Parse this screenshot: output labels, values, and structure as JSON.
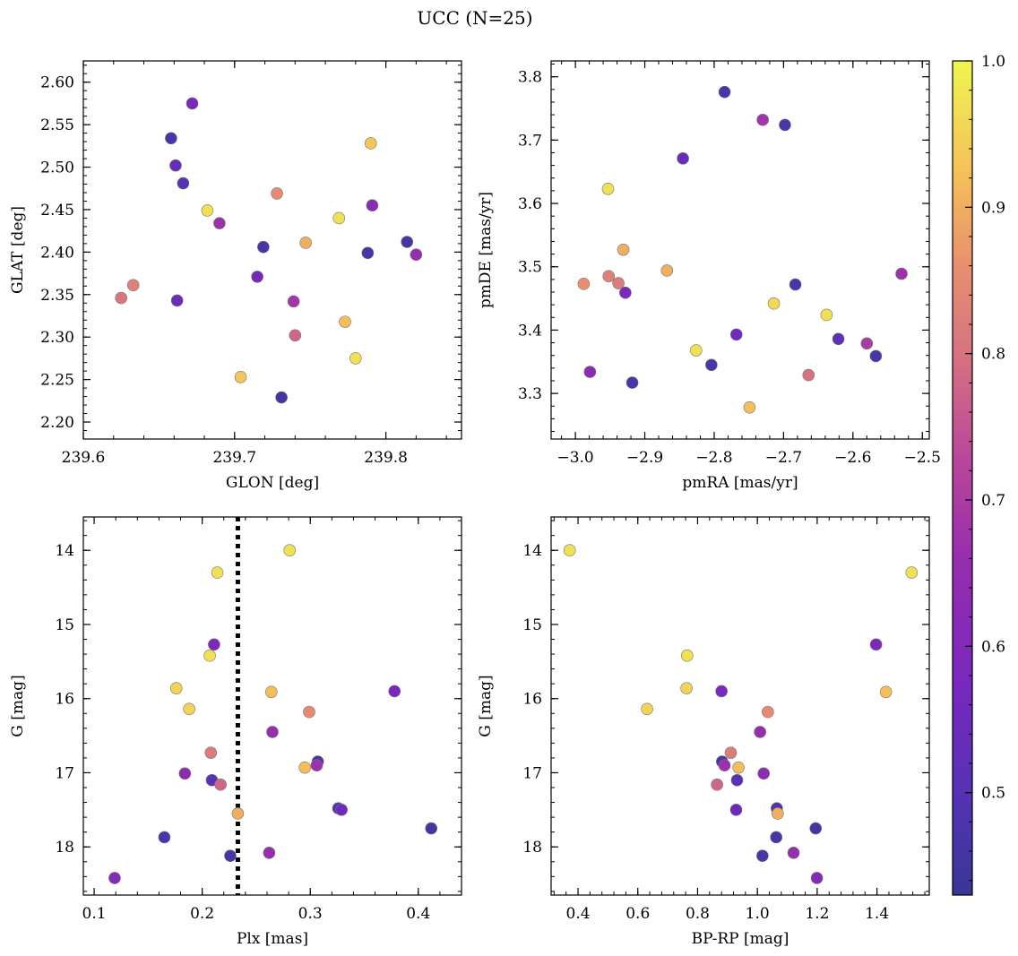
{
  "figure": {
    "title": "UCC (N=25)"
  },
  "colorbar": {
    "colormap": "plasma",
    "range": [
      0.43,
      1.0
    ],
    "ticks": [
      0.5,
      0.6,
      0.7,
      0.8,
      0.9,
      1.0
    ],
    "tick_labels": [
      "0.5",
      "0.6",
      "0.7",
      "0.8",
      "0.9",
      "1.0"
    ]
  },
  "chart_data": [
    {
      "type": "scatter",
      "xlabel": "GLON [deg]",
      "ylabel": "GLAT [deg]",
      "xlim": [
        239.6,
        239.85
      ],
      "ylim": [
        2.18,
        2.625
      ],
      "xticks": [
        239.6,
        239.7,
        239.8
      ],
      "xtick_labels": [
        "239.6",
        "239.7",
        "239.8"
      ],
      "yticks": [
        2.2,
        2.25,
        2.3,
        2.35,
        2.4,
        2.45,
        2.5,
        2.55,
        2.6
      ],
      "ytick_labels": [
        "2.20",
        "2.25",
        "2.30",
        "2.35",
        "2.40",
        "2.45",
        "2.50",
        "2.55",
        "2.60"
      ],
      "points": [
        {
          "x": 239.672,
          "y": 2.575,
          "c": 0.58
        },
        {
          "x": 239.658,
          "y": 2.534,
          "c": 0.47
        },
        {
          "x": 239.661,
          "y": 2.502,
          "c": 0.53
        },
        {
          "x": 239.666,
          "y": 2.481,
          "c": 0.5
        },
        {
          "x": 239.79,
          "y": 2.528,
          "c": 0.93
        },
        {
          "x": 239.728,
          "y": 2.469,
          "c": 0.85
        },
        {
          "x": 239.682,
          "y": 2.449,
          "c": 0.97
        },
        {
          "x": 239.69,
          "y": 2.434,
          "c": 0.67
        },
        {
          "x": 239.791,
          "y": 2.455,
          "c": 0.62
        },
        {
          "x": 239.769,
          "y": 2.44,
          "c": 0.97
        },
        {
          "x": 239.747,
          "y": 2.411,
          "c": 0.9
        },
        {
          "x": 239.719,
          "y": 2.406,
          "c": 0.47
        },
        {
          "x": 239.814,
          "y": 2.412,
          "c": 0.46
        },
        {
          "x": 239.788,
          "y": 2.399,
          "c": 0.47
        },
        {
          "x": 239.82,
          "y": 2.397,
          "c": 0.66
        },
        {
          "x": 239.715,
          "y": 2.371,
          "c": 0.56
        },
        {
          "x": 239.633,
          "y": 2.361,
          "c": 0.83
        },
        {
          "x": 239.625,
          "y": 2.346,
          "c": 0.81
        },
        {
          "x": 239.662,
          "y": 2.343,
          "c": 0.55
        },
        {
          "x": 239.739,
          "y": 2.342,
          "c": 0.68
        },
        {
          "x": 239.773,
          "y": 2.318,
          "c": 0.92
        },
        {
          "x": 239.74,
          "y": 2.302,
          "c": 0.78
        },
        {
          "x": 239.78,
          "y": 2.275,
          "c": 0.97
        },
        {
          "x": 239.704,
          "y": 2.253,
          "c": 0.93
        },
        {
          "x": 239.731,
          "y": 2.229,
          "c": 0.46
        }
      ]
    },
    {
      "type": "scatter",
      "xlabel": "pmRA [mas/yr]",
      "ylabel": "pmDE [mas/yr]",
      "xlim": [
        -3.035,
        -2.49
      ],
      "ylim": [
        3.228,
        3.825
      ],
      "xticks": [
        -3.0,
        -2.9,
        -2.8,
        -2.7,
        -2.6,
        -2.5
      ],
      "xtick_labels": [
        "−3.0",
        "−2.9",
        "−2.8",
        "−2.7",
        "−2.6",
        "−2.5"
      ],
      "yticks": [
        3.3,
        3.4,
        3.5,
        3.6,
        3.7,
        3.8
      ],
      "ytick_labels": [
        "3.3",
        "3.4",
        "3.5",
        "3.6",
        "3.7",
        "3.8"
      ],
      "points": [
        {
          "x": -2.785,
          "y": 3.776,
          "c": 0.47
        },
        {
          "x": -2.73,
          "y": 3.732,
          "c": 0.68
        },
        {
          "x": -2.698,
          "y": 3.724,
          "c": 0.47
        },
        {
          "x": -2.845,
          "y": 3.671,
          "c": 0.53
        },
        {
          "x": -2.953,
          "y": 3.623,
          "c": 0.97
        },
        {
          "x": -2.931,
          "y": 3.527,
          "c": 0.9
        },
        {
          "x": -2.868,
          "y": 3.494,
          "c": 0.9
        },
        {
          "x": -2.952,
          "y": 3.485,
          "c": 0.83
        },
        {
          "x": -2.938,
          "y": 3.474,
          "c": 0.82
        },
        {
          "x": -2.988,
          "y": 3.473,
          "c": 0.86
        },
        {
          "x": -2.928,
          "y": 3.459,
          "c": 0.58
        },
        {
          "x": -2.683,
          "y": 3.472,
          "c": 0.47
        },
        {
          "x": -2.53,
          "y": 3.489,
          "c": 0.67
        },
        {
          "x": -2.714,
          "y": 3.442,
          "c": 0.96
        },
        {
          "x": -2.638,
          "y": 3.424,
          "c": 0.97
        },
        {
          "x": -2.768,
          "y": 3.393,
          "c": 0.56
        },
        {
          "x": -2.621,
          "y": 3.386,
          "c": 0.52
        },
        {
          "x": -2.58,
          "y": 3.379,
          "c": 0.7
        },
        {
          "x": -2.826,
          "y": 3.368,
          "c": 0.97
        },
        {
          "x": -2.567,
          "y": 3.359,
          "c": 0.47
        },
        {
          "x": -2.804,
          "y": 3.345,
          "c": 0.47
        },
        {
          "x": -2.979,
          "y": 3.334,
          "c": 0.63
        },
        {
          "x": -2.664,
          "y": 3.329,
          "c": 0.8
        },
        {
          "x": -2.918,
          "y": 3.317,
          "c": 0.47
        },
        {
          "x": -2.749,
          "y": 3.278,
          "c": 0.92
        }
      ]
    },
    {
      "type": "scatter",
      "xlabel": "Plx [mas]",
      "ylabel": "G [mag]",
      "xlim": [
        0.09,
        0.44
      ],
      "ylim": [
        18.65,
        13.55
      ],
      "xticks": [
        0.1,
        0.2,
        0.3,
        0.4
      ],
      "xtick_labels": [
        "0.1",
        "0.2",
        "0.3",
        "0.4"
      ],
      "yticks": [
        14,
        15,
        16,
        17,
        18
      ],
      "ytick_labels": [
        "14",
        "15",
        "16",
        "17",
        "18"
      ],
      "vline": {
        "x": 0.233,
        "style": "dotted",
        "color": "#000000"
      },
      "points": [
        {
          "x": 0.281,
          "y": 14.0,
          "c": 0.97
        },
        {
          "x": 0.214,
          "y": 14.3,
          "c": 0.97
        },
        {
          "x": 0.211,
          "y": 15.27,
          "c": 0.58
        },
        {
          "x": 0.207,
          "y": 15.42,
          "c": 0.97
        },
        {
          "x": 0.176,
          "y": 15.86,
          "c": 0.95
        },
        {
          "x": 0.378,
          "y": 15.9,
          "c": 0.58
        },
        {
          "x": 0.264,
          "y": 15.91,
          "c": 0.92
        },
        {
          "x": 0.188,
          "y": 16.14,
          "c": 0.95
        },
        {
          "x": 0.299,
          "y": 16.18,
          "c": 0.85
        },
        {
          "x": 0.265,
          "y": 16.45,
          "c": 0.66
        },
        {
          "x": 0.208,
          "y": 16.73,
          "c": 0.82
        },
        {
          "x": 0.307,
          "y": 16.85,
          "c": 0.47
        },
        {
          "x": 0.306,
          "y": 16.9,
          "c": 0.67
        },
        {
          "x": 0.295,
          "y": 16.93,
          "c": 0.92
        },
        {
          "x": 0.184,
          "y": 17.01,
          "c": 0.63
        },
        {
          "x": 0.209,
          "y": 17.1,
          "c": 0.5
        },
        {
          "x": 0.217,
          "y": 17.16,
          "c": 0.78
        },
        {
          "x": 0.326,
          "y": 17.48,
          "c": 0.49
        },
        {
          "x": 0.329,
          "y": 17.5,
          "c": 0.55
        },
        {
          "x": 0.233,
          "y": 17.55,
          "c": 0.9
        },
        {
          "x": 0.412,
          "y": 17.75,
          "c": 0.46
        },
        {
          "x": 0.165,
          "y": 17.87,
          "c": 0.47
        },
        {
          "x": 0.262,
          "y": 18.08,
          "c": 0.66
        },
        {
          "x": 0.226,
          "y": 18.12,
          "c": 0.47
        },
        {
          "x": 0.119,
          "y": 18.42,
          "c": 0.6
        }
      ]
    },
    {
      "type": "scatter",
      "xlabel": "BP-RP [mag]",
      "ylabel": "G [mag]",
      "xlim": [
        0.31,
        1.575
      ],
      "ylim": [
        18.65,
        13.55
      ],
      "xticks": [
        0.4,
        0.6,
        0.8,
        1.0,
        1.2,
        1.4
      ],
      "xtick_labels": [
        "0.4",
        "0.6",
        "0.8",
        "1.0",
        "1.2",
        "1.4"
      ],
      "yticks": [
        14,
        15,
        16,
        17,
        18
      ],
      "ytick_labels": [
        "14",
        "15",
        "16",
        "17",
        "18"
      ],
      "points": [
        {
          "x": 0.372,
          "y": 14.0,
          "c": 0.97
        },
        {
          "x": 1.516,
          "y": 14.3,
          "c": 0.97
        },
        {
          "x": 1.397,
          "y": 15.27,
          "c": 0.58
        },
        {
          "x": 0.765,
          "y": 15.42,
          "c": 0.97
        },
        {
          "x": 0.763,
          "y": 15.86,
          "c": 0.95
        },
        {
          "x": 0.88,
          "y": 15.9,
          "c": 0.58
        },
        {
          "x": 1.43,
          "y": 15.91,
          "c": 0.92
        },
        {
          "x": 0.631,
          "y": 16.14,
          "c": 0.95
        },
        {
          "x": 1.035,
          "y": 16.18,
          "c": 0.85
        },
        {
          "x": 1.009,
          "y": 16.45,
          "c": 0.66
        },
        {
          "x": 0.911,
          "y": 16.73,
          "c": 0.82
        },
        {
          "x": 0.882,
          "y": 16.85,
          "c": 0.47
        },
        {
          "x": 0.89,
          "y": 16.9,
          "c": 0.67
        },
        {
          "x": 0.937,
          "y": 16.93,
          "c": 0.92
        },
        {
          "x": 1.021,
          "y": 17.01,
          "c": 0.63
        },
        {
          "x": 0.932,
          "y": 17.1,
          "c": 0.5
        },
        {
          "x": 0.865,
          "y": 17.16,
          "c": 0.78
        },
        {
          "x": 1.065,
          "y": 17.48,
          "c": 0.49
        },
        {
          "x": 0.929,
          "y": 17.5,
          "c": 0.55
        },
        {
          "x": 1.068,
          "y": 17.55,
          "c": 0.9
        },
        {
          "x": 1.195,
          "y": 17.75,
          "c": 0.46
        },
        {
          "x": 1.063,
          "y": 17.87,
          "c": 0.47
        },
        {
          "x": 1.121,
          "y": 18.08,
          "c": 0.66
        },
        {
          "x": 1.017,
          "y": 18.12,
          "c": 0.47
        },
        {
          "x": 1.199,
          "y": 18.42,
          "c": 0.6
        }
      ]
    }
  ]
}
